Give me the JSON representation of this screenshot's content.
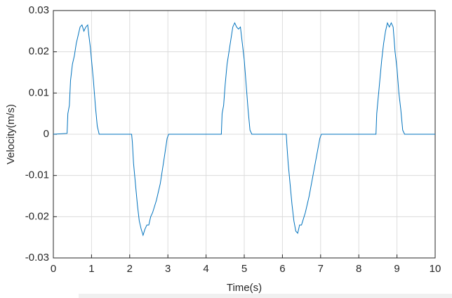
{
  "chart_data": {
    "type": "line",
    "xlabel": "Time(s)",
    "ylabel": "Velocity(m/s)",
    "xlim": [
      0,
      10
    ],
    "xticks": [
      0,
      1,
      2,
      3,
      4,
      5,
      6,
      7,
      8,
      9,
      10
    ],
    "ylim": [
      -0.03,
      0.03
    ],
    "yticks": [
      -0.03,
      -0.02,
      -0.01,
      0,
      0.01,
      0.02,
      0.03
    ],
    "grid": true,
    "x": [
      0,
      0.36,
      0.38,
      0.42,
      0.45,
      0.5,
      0.55,
      0.6,
      0.65,
      0.7,
      0.75,
      0.8,
      0.85,
      0.9,
      0.93,
      0.97,
      1.0,
      1.05,
      1.1,
      1.15,
      1.2,
      2.05,
      2.07,
      2.1,
      2.15,
      2.2,
      2.25,
      2.3,
      2.35,
      2.4,
      2.45,
      2.5,
      2.55,
      2.6,
      2.7,
      2.8,
      2.9,
      2.98,
      3.02,
      4.4,
      4.42,
      4.46,
      4.5,
      4.55,
      4.6,
      4.65,
      4.7,
      4.75,
      4.8,
      4.85,
      4.9,
      4.95,
      5.0,
      5.05,
      5.1,
      5.15,
      5.2,
      6.1,
      6.12,
      6.15,
      6.2,
      6.25,
      6.3,
      6.35,
      6.4,
      6.45,
      6.5,
      6.6,
      6.7,
      6.8,
      6.9,
      6.98,
      7.02,
      8.45,
      8.47,
      8.5,
      8.55,
      8.6,
      8.65,
      8.7,
      8.75,
      8.8,
      8.85,
      8.9,
      8.95,
      9.0,
      9.05,
      9.1,
      9.15,
      9.2,
      10
    ],
    "series": [
      {
        "color": "#0072BD",
        "values": [
          0,
          0.0002,
          0.005,
          0.007,
          0.013,
          0.017,
          0.019,
          0.022,
          0.024,
          0.026,
          0.0265,
          0.025,
          0.026,
          0.0265,
          0.024,
          0.021,
          0.018,
          0.013,
          0.007,
          0.002,
          0,
          0,
          -0.002,
          -0.007,
          -0.012,
          -0.017,
          -0.021,
          -0.023,
          -0.0245,
          -0.023,
          -0.022,
          -0.022,
          -0.02,
          -0.019,
          -0.016,
          -0.012,
          -0.006,
          -0.001,
          0,
          0,
          0.005,
          0.007,
          0.012,
          0.017,
          0.02,
          0.023,
          0.026,
          0.027,
          0.026,
          0.0255,
          0.026,
          0.022,
          0.018,
          0.012,
          0.006,
          0.001,
          0,
          0,
          -0.003,
          -0.007,
          -0.012,
          -0.017,
          -0.021,
          -0.0235,
          -0.024,
          -0.022,
          -0.022,
          -0.019,
          -0.015,
          -0.01,
          -0.005,
          -0.001,
          0,
          0,
          0.005,
          0.008,
          0.013,
          0.018,
          0.022,
          0.025,
          0.027,
          0.026,
          0.027,
          0.026,
          0.02,
          0.016,
          0.01,
          0.006,
          0.001,
          0,
          0
        ]
      }
    ]
  }
}
